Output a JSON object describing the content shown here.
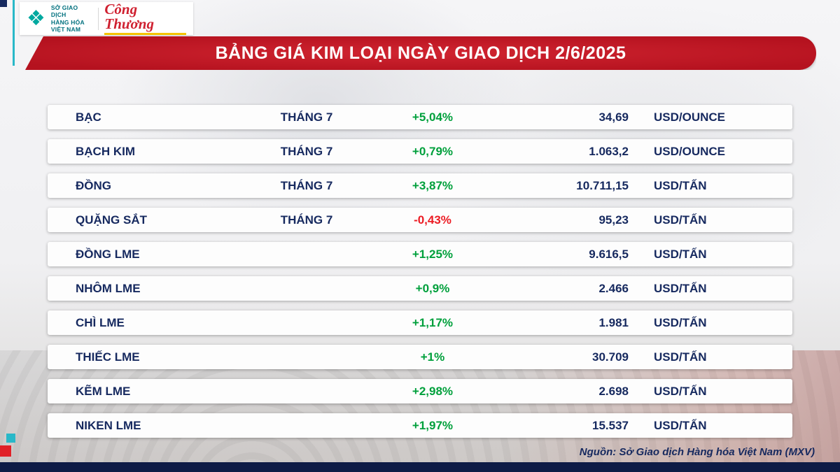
{
  "header": {
    "logo": {
      "org_line1": "SỞ GIAO DỊCH",
      "org_line2": "HÀNG HÓA",
      "org_line3": "VIỆT NAM",
      "brand": "Công Thương"
    },
    "title": "BẢNG GIÁ KIM LOẠI NGÀY GIAO DỊCH 2/6/2025"
  },
  "chart_data": {
    "type": "table",
    "title": "BẢNG GIÁ KIM LOẠI NGÀY GIAO DỊCH 2/6/2025",
    "rows": [
      {
        "name": "BẠC",
        "month": "THÁNG 7",
        "change": "+5,04%",
        "change_pct": 5.04,
        "price_display": "34,69",
        "price": 34.69,
        "unit": "USD/OUNCE",
        "direction": "up"
      },
      {
        "name": "BẠCH KIM",
        "month": "THÁNG 7",
        "change": "+0,79%",
        "change_pct": 0.79,
        "price_display": "1.063,2",
        "price": 1063.2,
        "unit": "USD/OUNCE",
        "direction": "up"
      },
      {
        "name": "ĐỒNG",
        "month": "THÁNG 7",
        "change": "+3,87%",
        "change_pct": 3.87,
        "price_display": "10.711,15",
        "price": 10711.15,
        "unit": "USD/TẤN",
        "direction": "up"
      },
      {
        "name": "QUẶNG SẮT",
        "month": "THÁNG 7",
        "change": "-0,43%",
        "change_pct": -0.43,
        "price_display": "95,23",
        "price": 95.23,
        "unit": "USD/TẤN",
        "direction": "down"
      },
      {
        "name": "ĐỒNG LME",
        "month": "",
        "change": "+1,25%",
        "change_pct": 1.25,
        "price_display": "9.616,5",
        "price": 9616.5,
        "unit": "USD/TẤN",
        "direction": "up"
      },
      {
        "name": "NHÔM LME",
        "month": "",
        "change": "+0,9%",
        "change_pct": 0.9,
        "price_display": "2.466",
        "price": 2466,
        "unit": "USD/TẤN",
        "direction": "up"
      },
      {
        "name": "CHÌ LME",
        "month": "",
        "change": "+1,17%",
        "change_pct": 1.17,
        "price_display": "1.981",
        "price": 1981,
        "unit": "USD/TẤN",
        "direction": "up"
      },
      {
        "name": "THIẾC LME",
        "month": "",
        "change": "+1%",
        "change_pct": 1.0,
        "price_display": "30.709",
        "price": 30709,
        "unit": "USD/TẤN",
        "direction": "up"
      },
      {
        "name": "KẼM LME",
        "month": "",
        "change": "+2,98%",
        "change_pct": 2.98,
        "price_display": "2.698",
        "price": 2698,
        "unit": "USD/TẤN",
        "direction": "up"
      },
      {
        "name": "NIKEN LME",
        "month": "",
        "change": "+1,97%",
        "change_pct": 1.97,
        "price_display": "15.537",
        "price": 15537,
        "unit": "USD/TẤN",
        "direction": "up"
      }
    ]
  },
  "footer": {
    "source": "Nguồn: Sở Giao dịch Hàng hóa Việt Nam (MXV)"
  },
  "colors": {
    "positive": "#00a03c",
    "negative": "#ec1c24",
    "navy": "#16295f",
    "banner_red": "#b5121f",
    "logo_teal": "#00a9a0"
  }
}
